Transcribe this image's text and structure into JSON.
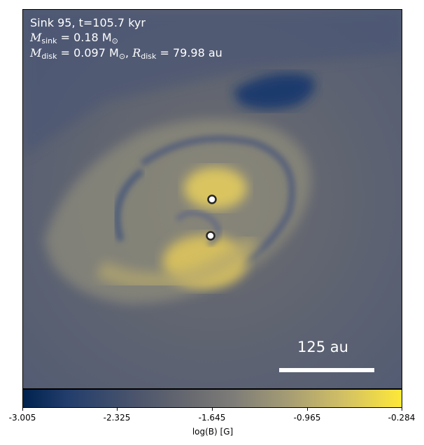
{
  "annotation": {
    "sink_line": "Sink 95, t=105.7 kyr",
    "msink_symbol": "M",
    "msink_sub": "sink",
    "msink_value": " = 0.18 M",
    "sun_sub": "⊙",
    "mdisk_symbol": "M",
    "mdisk_sub": "disk",
    "mdisk_value": " = 0.097 M",
    "rdisk_sep": ", ",
    "rdisk_symbol": "R",
    "rdisk_sub": "disk",
    "rdisk_value": " = 79.98 au"
  },
  "scale_bar": {
    "label": "125 au"
  },
  "colorbar": {
    "ticks": [
      "-3.005",
      "-2.325",
      "-1.645",
      "-0.965",
      "-0.284"
    ],
    "label": "log(B) [G]"
  },
  "colors": {
    "low": "#00224e",
    "mid": "#7c7b78",
    "high": "#fee838"
  }
}
